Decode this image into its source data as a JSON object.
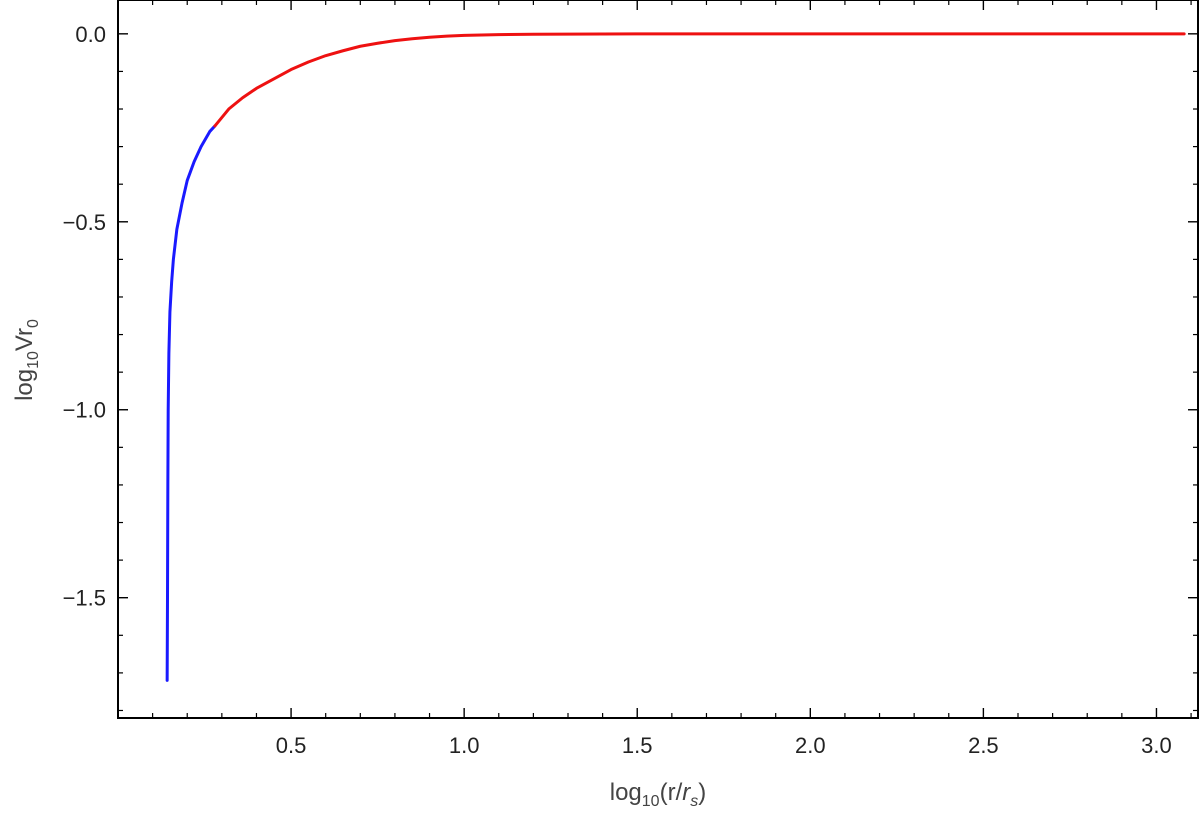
{
  "chart_data": {
    "type": "line",
    "title": "",
    "xlabel": {
      "base": "log",
      "sub": "10",
      "rest_open": "(r/",
      "var": "r",
      "var_sub": "s",
      "rest_close": ")"
    },
    "ylabel": {
      "base": "log",
      "sub": "10",
      "rest": "Vr",
      "rest_sub": "0"
    },
    "xlim": [
      0.0,
      3.12
    ],
    "ylim": [
      -1.82,
      0.09
    ],
    "x_ticks": [
      {
        "value": 0.5,
        "label": "0.5"
      },
      {
        "value": 1.0,
        "label": "1.0"
      },
      {
        "value": 1.5,
        "label": "1.5"
      },
      {
        "value": 2.0,
        "label": "2.0"
      },
      {
        "value": 2.5,
        "label": "2.5"
      },
      {
        "value": 3.0,
        "label": "3.0"
      }
    ],
    "y_ticks": [
      {
        "value": 0.0,
        "label": "0.0"
      },
      {
        "value": -0.5,
        "label": "−0.5"
      },
      {
        "value": -1.0,
        "label": "−1.0"
      },
      {
        "value": -1.5,
        "label": "−1.5"
      }
    ],
    "x_minor_step": 0.1,
    "y_minor_step": 0.1,
    "grid": false,
    "series": [
      {
        "color": "#1a1aff",
        "points": [
          [
            0.142,
            -1.72
          ],
          [
            0.143,
            -1.5
          ],
          [
            0.144,
            -1.2
          ],
          [
            0.145,
            -1.0
          ],
          [
            0.147,
            -0.85
          ],
          [
            0.15,
            -0.74
          ],
          [
            0.155,
            -0.66
          ],
          [
            0.16,
            -0.6
          ],
          [
            0.17,
            -0.52
          ],
          [
            0.185,
            -0.45
          ],
          [
            0.2,
            -0.39
          ],
          [
            0.22,
            -0.34
          ],
          [
            0.24,
            -0.3
          ],
          [
            0.265,
            -0.26
          ],
          [
            0.28,
            -0.245
          ]
        ]
      },
      {
        "color": "#ee1111",
        "points": [
          [
            0.28,
            -0.245
          ],
          [
            0.32,
            -0.2
          ],
          [
            0.36,
            -0.17
          ],
          [
            0.4,
            -0.145
          ],
          [
            0.45,
            -0.12
          ],
          [
            0.5,
            -0.095
          ],
          [
            0.55,
            -0.075
          ],
          [
            0.6,
            -0.058
          ],
          [
            0.65,
            -0.045
          ],
          [
            0.7,
            -0.033
          ],
          [
            0.75,
            -0.025
          ],
          [
            0.8,
            -0.018
          ],
          [
            0.85,
            -0.013
          ],
          [
            0.9,
            -0.009
          ],
          [
            0.95,
            -0.006
          ],
          [
            1.0,
            -0.004
          ],
          [
            1.1,
            -0.002
          ],
          [
            1.2,
            -0.001
          ],
          [
            1.4,
            -0.0003
          ],
          [
            1.7,
            0.0
          ],
          [
            2.0,
            0.0
          ],
          [
            2.5,
            0.0
          ],
          [
            3.08,
            0.0
          ]
        ]
      }
    ]
  }
}
